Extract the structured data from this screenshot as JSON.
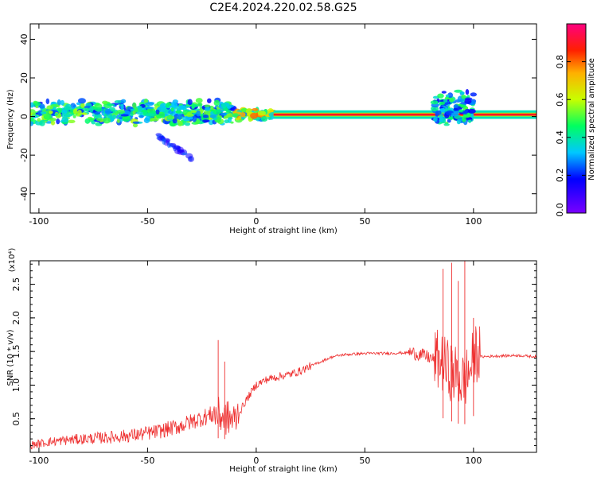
{
  "figure": {
    "title": "C2E4.2024.220.02.58.G25"
  },
  "chart_data": [
    {
      "type": "heatmap",
      "title": "C2E4.2024.220.02.58.G25",
      "xlabel": "Height of straight line (km)",
      "ylabel": "Frequency (Hz)",
      "xlim": [
        -104,
        129
      ],
      "ylim": [
        -50,
        48
      ],
      "xticks": [
        -100,
        -50,
        0,
        50,
        100
      ],
      "yticks": [
        -40,
        -20,
        0,
        20,
        40
      ],
      "colorbar": {
        "label": "Normalized spectral amplitude",
        "range": [
          0,
          1
        ],
        "ticks": [
          0.0,
          0.2,
          0.4,
          0.6,
          0.8
        ],
        "tick_labels": [
          "0.0",
          "0.2",
          "0.4",
          "0.6",
          "0.8"
        ],
        "colormap": [
          "#7a00ff",
          "#0000ff",
          "#00c8ff",
          "#00ff60",
          "#c8ff00",
          "#ffb000",
          "#ff2000",
          "#ff0080"
        ]
      },
      "features": [
        {
          "x_range": [
            -104,
            -10
          ],
          "freq_center": 2,
          "freq_halfwidth": 7,
          "intensity": 0.35,
          "kind": "broadband scattered"
        },
        {
          "x_range": [
            -10,
            8
          ],
          "freq_center": 1,
          "freq_halfwidth": 3,
          "intensity": 0.5,
          "kind": "transition"
        },
        {
          "x_range": [
            8,
            129
          ],
          "freq_center": 1,
          "freq_halfwidth": 1,
          "intensity": 0.9,
          "kind": "narrow tone"
        },
        {
          "x_range": [
            82,
            100
          ],
          "freq_center": 4,
          "freq_halfwidth": 10,
          "intensity": 0.3,
          "kind": "burst"
        },
        {
          "x_range": [
            -45,
            -30
          ],
          "freq_center": -16,
          "freq_halfwidth": 6,
          "intensity": 0.15,
          "kind": "diagonal streak"
        }
      ]
    },
    {
      "type": "line",
      "title": "",
      "xlabel": "Height of straight line (km)",
      "ylabel": "SNR (10 * v/v)",
      "y_multiplier": "(x10⁴)",
      "xlim": [
        -104,
        129
      ],
      "ylim": [
        0,
        2.85
      ],
      "xticks": [
        -100,
        -50,
        0,
        50,
        100
      ],
      "yticks": [
        0.5,
        1.0,
        1.5,
        2.0,
        2.5
      ],
      "ytick_labels": [
        "0.5",
        "1.0",
        "1.5",
        "2.0",
        "2.5"
      ],
      "color": "#ee3030",
      "series": [
        {
          "x": [
            -104,
            -95,
            -85,
            -75,
            -65,
            -55,
            -45,
            -35,
            -25,
            -20,
            -15,
            -10,
            -5,
            0,
            5,
            10,
            15,
            20,
            25,
            30,
            35,
            40,
            50,
            60,
            70,
            75,
            80,
            85,
            88,
            92,
            95,
            98,
            101,
            104,
            110,
            120,
            129
          ],
          "y": [
            0.1,
            0.15,
            0.18,
            0.2,
            0.22,
            0.25,
            0.3,
            0.38,
            0.5,
            0.55,
            0.5,
            0.45,
            0.75,
            1.0,
            1.08,
            1.12,
            1.15,
            1.2,
            1.28,
            1.35,
            1.42,
            1.45,
            1.47,
            1.47,
            1.48,
            1.45,
            1.4,
            1.3,
            1.2,
            1.1,
            1.0,
            1.15,
            1.45,
            1.42,
            1.43,
            1.44,
            1.42
          ]
        }
      ],
      "spikes": [
        {
          "x": -17.5,
          "y": 1.67
        },
        {
          "x": -14.5,
          "y": 1.35
        },
        {
          "x": 86,
          "y": 2.73
        },
        {
          "x": 90,
          "y": 2.82
        },
        {
          "x": 93,
          "y": 2.55
        },
        {
          "x": 96,
          "y": 2.9
        },
        {
          "x": 100,
          "y": 2.0
        }
      ]
    }
  ]
}
